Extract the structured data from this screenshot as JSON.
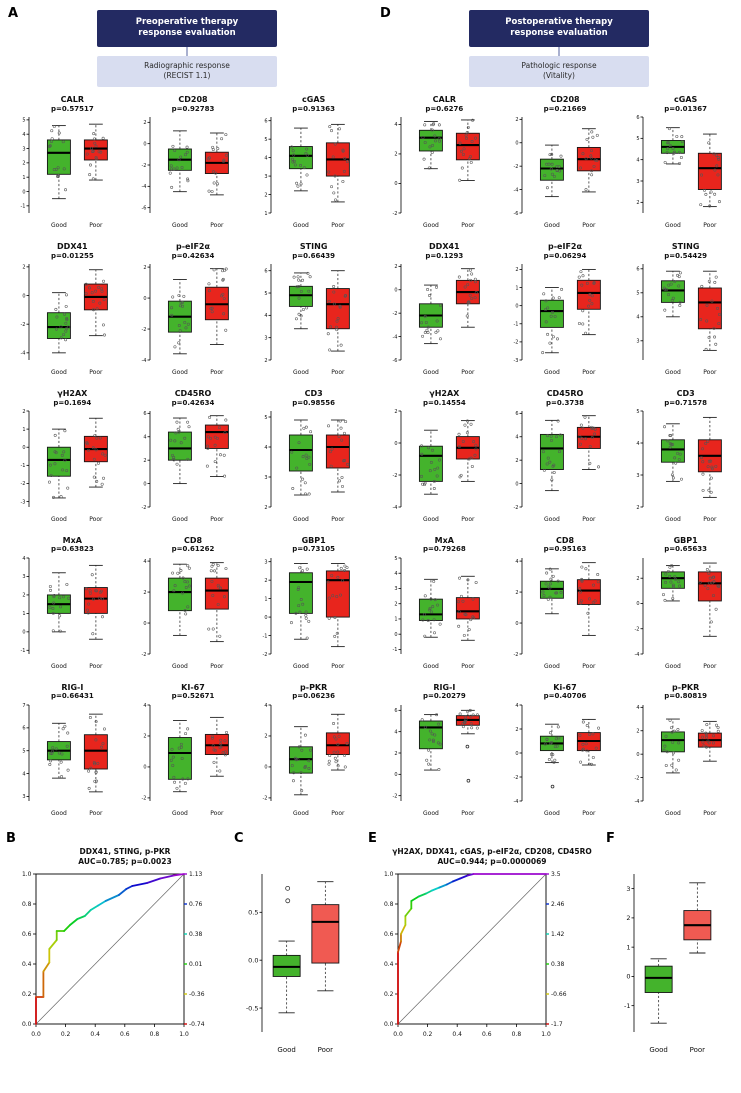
{
  "colors": {
    "good_fill": "#44b32c",
    "poor_fill": "#e8251d",
    "poor_fill_light": "#f05a52",
    "box_stroke": "#151515",
    "flow_dark_bg": "#232a62",
    "flow_dark_text": "#ffffff",
    "flow_light_bg": "#d8ddf0",
    "flow_light_text": "#2a2a2a",
    "point_stroke": "#555555",
    "diag_line": "#666666"
  },
  "group_labels": [
    "Good",
    "Poor"
  ],
  "box_stats_order": "[whisker_low, q1, median, q3, whisker_high]",
  "chart_data": {
    "A": {
      "type": "boxplot-grid",
      "label": "A",
      "flow_top": "Preoperative therapy\nresponse evaluation",
      "flow_bottom": "Radiographic response\n(RECIST 1.1)",
      "plots": [
        {
          "name": "CALR",
          "p": "p=0.57517",
          "ylim": [
            -1.5,
            5.2
          ],
          "yticks": [
            -1,
            0,
            1,
            2,
            3,
            4,
            5
          ],
          "good": [
            -0.5,
            1.2,
            2.7,
            3.6,
            4.6
          ],
          "poor": [
            0.8,
            2.2,
            3.0,
            3.6,
            4.7
          ]
        },
        {
          "name": "CD208",
          "p": "p=0.92783",
          "ylim": [
            -6.5,
            2.5
          ],
          "yticks": [
            -6,
            -4,
            -2,
            0,
            2
          ],
          "good": [
            -4.5,
            -2.5,
            -1.5,
            -0.5,
            1.2
          ],
          "poor": [
            -4.8,
            -2.8,
            -1.8,
            -0.8,
            1.0
          ]
        },
        {
          "name": "cGAS",
          "p": "p=0.91363",
          "ylim": [
            1,
            6.2
          ],
          "yticks": [
            1,
            2,
            3,
            4,
            5,
            6
          ],
          "good": [
            2.2,
            3.4,
            4.1,
            4.6,
            5.6
          ],
          "poor": [
            1.6,
            3.0,
            3.9,
            4.8,
            5.8
          ]
        },
        {
          "name": "DDX41",
          "p": "p=0.01255",
          "ylim": [
            -4.5,
            2.2
          ],
          "yticks": [
            -4,
            -2,
            0,
            2
          ],
          "good": [
            -4.0,
            -3.0,
            -2.2,
            -1.2,
            0.2
          ],
          "poor": [
            -2.8,
            -1.0,
            -0.1,
            0.8,
            1.8
          ]
        },
        {
          "name": "p-eIF2α",
          "p": "p=0.42634",
          "ylim": [
            -4,
            2.2
          ],
          "yticks": [
            -4,
            -2,
            0,
            2
          ],
          "good": [
            -3.6,
            -2.2,
            -1.2,
            -0.2,
            1.2
          ],
          "poor": [
            -3.0,
            -1.4,
            -0.4,
            0.7,
            1.9
          ]
        },
        {
          "name": "STING",
          "p": "p=0.66439",
          "ylim": [
            2,
            6.3
          ],
          "yticks": [
            2,
            3,
            4,
            5,
            6
          ],
          "good": [
            3.4,
            4.4,
            4.9,
            5.3,
            5.9
          ],
          "poor": [
            2.4,
            3.4,
            4.5,
            5.2,
            6.0
          ]
        },
        {
          "name": "γH2AX",
          "p": "p=0.1694",
          "ylim": [
            -3.3,
            2
          ],
          "yticks": [
            -3,
            -2,
            -1,
            0,
            1,
            2
          ],
          "good": [
            -2.8,
            -1.6,
            -0.7,
            0.0,
            1.0
          ],
          "poor": [
            -2.2,
            -0.8,
            -0.1,
            0.6,
            1.6
          ]
        },
        {
          "name": "CD45RO",
          "p": "p=0.42634",
          "ylim": [
            -2,
            6.2
          ],
          "yticks": [
            -2,
            0,
            2,
            4,
            6
          ],
          "good": [
            0.0,
            2.0,
            3.0,
            4.4,
            5.6
          ],
          "poor": [
            0.6,
            3.0,
            4.4,
            5.0,
            5.8
          ]
        },
        {
          "name": "CD3",
          "p": "p=0.98556",
          "ylim": [
            2,
            5.2
          ],
          "yticks": [
            2,
            3,
            4,
            5
          ],
          "good": [
            2.4,
            3.2,
            3.9,
            4.4,
            4.9
          ],
          "poor": [
            2.5,
            3.3,
            4.0,
            4.4,
            4.9
          ]
        },
        {
          "name": "MxA",
          "p": "p=0.63823",
          "ylim": [
            -1.2,
            4
          ],
          "yticks": [
            -1,
            0,
            1,
            2,
            3,
            4
          ],
          "good": [
            0.0,
            1.0,
            1.5,
            2.0,
            3.2
          ],
          "poor": [
            -0.4,
            1.0,
            1.8,
            2.4,
            3.6
          ]
        },
        {
          "name": "CD8",
          "p": "p=0.61262",
          "ylim": [
            -2,
            4.2
          ],
          "yticks": [
            -2,
            0,
            2,
            4
          ],
          "good": [
            -0.8,
            0.8,
            2.0,
            2.9,
            3.8
          ],
          "poor": [
            -1.2,
            0.9,
            2.1,
            2.9,
            3.9
          ]
        },
        {
          "name": "GBP1",
          "p": "p=0.73105",
          "ylim": [
            -2,
            3.2
          ],
          "yticks": [
            -2,
            -1,
            0,
            1,
            2,
            3
          ],
          "good": [
            -1.2,
            0.2,
            1.9,
            2.4,
            2.9
          ],
          "poor": [
            -1.6,
            0.0,
            2.0,
            2.5,
            2.9
          ]
        },
        {
          "name": "RIG-I",
          "p": "p=0.66431",
          "ylim": [
            2.8,
            7
          ],
          "yticks": [
            3,
            4,
            5,
            6,
            7
          ],
          "good": [
            3.8,
            4.6,
            5.0,
            5.4,
            6.2
          ],
          "poor": [
            3.2,
            4.2,
            5.0,
            5.7,
            6.6
          ]
        },
        {
          "name": "KI-67",
          "p": "p=0.52671",
          "ylim": [
            -2.2,
            4
          ],
          "yticks": [
            -2,
            0,
            2,
            4
          ],
          "good": [
            -1.6,
            -0.8,
            0.9,
            1.9,
            3.0
          ],
          "poor": [
            -0.6,
            0.8,
            1.4,
            2.1,
            3.2
          ]
        },
        {
          "name": "p-PKR",
          "p": "p=0.06236",
          "ylim": [
            -2.2,
            4
          ],
          "yticks": [
            -2,
            0,
            2,
            4
          ],
          "good": [
            -1.8,
            -0.4,
            0.5,
            1.3,
            2.6
          ],
          "poor": [
            -0.2,
            0.8,
            1.4,
            2.2,
            3.4
          ]
        }
      ]
    },
    "D": {
      "type": "boxplot-grid",
      "label": "D",
      "flow_top": "Postoperative therapy\nresponse evaluation",
      "flow_bottom": "Pathologic response\n(Vitality)",
      "plots": [
        {
          "name": "CALR",
          "p": "p=0.6276",
          "ylim": [
            -2,
            4.5
          ],
          "yticks": [
            -2,
            0,
            2,
            4
          ],
          "good": [
            1.0,
            2.2,
            3.1,
            3.6,
            4.2
          ],
          "poor": [
            0.2,
            1.6,
            2.6,
            3.4,
            4.3
          ]
        },
        {
          "name": "CD208",
          "p": "p=0.21669",
          "ylim": [
            -6,
            2.2
          ],
          "yticks": [
            -6,
            -4,
            -2,
            0,
            2
          ],
          "good": [
            -4.6,
            -3.2,
            -2.2,
            -1.4,
            -0.2
          ],
          "poor": [
            -4.2,
            -2.4,
            -1.4,
            -0.4,
            1.2
          ]
        },
        {
          "name": "cGAS",
          "p": "p=0.01367",
          "ylim": [
            1.5,
            6
          ],
          "yticks": [
            2,
            3,
            4,
            5,
            6
          ],
          "good": [
            3.8,
            4.3,
            4.6,
            4.9,
            5.5
          ],
          "poor": [
            1.8,
            2.6,
            3.6,
            4.3,
            5.2
          ]
        },
        {
          "name": "DDX41",
          "p": "p=0.1293",
          "ylim": [
            -6,
            2.2
          ],
          "yticks": [
            -6,
            -4,
            -2,
            0,
            2
          ],
          "good": [
            -4.6,
            -3.2,
            -2.2,
            -1.2,
            0.4
          ],
          "poor": [
            -3.2,
            -1.2,
            -0.2,
            0.8,
            1.8
          ]
        },
        {
          "name": "p-eIF2α",
          "p": "p=0.06294",
          "ylim": [
            -3,
            2.3
          ],
          "yticks": [
            -3,
            -2,
            -1,
            0,
            1,
            2
          ],
          "good": [
            -2.6,
            -1.2,
            -0.3,
            0.3,
            1.0
          ],
          "poor": [
            -1.6,
            -0.2,
            0.7,
            1.4,
            2.0
          ]
        },
        {
          "name": "STING",
          "p": "p=0.54429",
          "ylim": [
            2.2,
            6.2
          ],
          "yticks": [
            3,
            4,
            5,
            6
          ],
          "good": [
            4.0,
            4.6,
            5.1,
            5.5,
            5.9
          ],
          "poor": [
            2.6,
            3.5,
            4.6,
            5.2,
            5.9
          ]
        },
        {
          "name": "γH2AX",
          "p": "p=0.14554",
          "ylim": [
            -4,
            2
          ],
          "yticks": [
            -4,
            -2,
            0,
            2
          ],
          "good": [
            -3.2,
            -2.4,
            -0.8,
            -0.2,
            0.8
          ],
          "poor": [
            -2.4,
            -1.0,
            -0.3,
            0.4,
            1.4
          ]
        },
        {
          "name": "CD45RO",
          "p": "p=0.3738",
          "ylim": [
            -2,
            6.2
          ],
          "yticks": [
            -2,
            0,
            2,
            4,
            6
          ],
          "good": [
            -0.6,
            1.2,
            3.0,
            4.2,
            5.4
          ],
          "poor": [
            1.2,
            3.0,
            4.0,
            4.8,
            5.8
          ]
        },
        {
          "name": "CD3",
          "p": "p=0.71578",
          "ylim": [
            2,
            5
          ],
          "yticks": [
            2,
            3,
            4,
            5
          ],
          "good": [
            2.8,
            3.4,
            3.8,
            4.1,
            4.6
          ],
          "poor": [
            2.3,
            3.1,
            3.6,
            4.1,
            4.8
          ]
        },
        {
          "name": "MxA",
          "p": "p=0.79268",
          "ylim": [
            -1.3,
            5
          ],
          "yticks": [
            -1,
            0,
            1,
            2,
            3,
            4,
            5
          ],
          "good": [
            -0.2,
            0.9,
            1.3,
            2.3,
            3.6
          ],
          "poor": [
            -0.4,
            1.0,
            1.5,
            2.4,
            3.8
          ]
        },
        {
          "name": "CD8",
          "p": "p=0.95163",
          "ylim": [
            -2,
            4.2
          ],
          "yticks": [
            -2,
            0,
            2,
            4
          ],
          "good": [
            0.6,
            1.6,
            2.2,
            2.7,
            3.5
          ],
          "poor": [
            -0.8,
            1.2,
            2.1,
            2.8,
            3.9
          ]
        },
        {
          "name": "GBP1",
          "p": "p=0.65633",
          "ylim": [
            -4,
            3.6
          ],
          "yticks": [
            -4,
            -2,
            0,
            2
          ],
          "good": [
            0.2,
            1.2,
            2.0,
            2.5,
            3.0
          ],
          "poor": [
            -2.6,
            0.2,
            1.6,
            2.5,
            3.2
          ]
        },
        {
          "name": "RIG-I",
          "p": "p=0.20279",
          "ylim": [
            -2.5,
            6.5
          ],
          "yticks": [
            -2,
            0,
            2,
            4,
            6
          ],
          "good": [
            0.4,
            2.4,
            4.4,
            5.0,
            5.6
          ],
          "poor": [
            3.8,
            4.6,
            5.1,
            5.5,
            6.0
          ],
          "pout": [
            2.6,
            -0.6
          ]
        },
        {
          "name": "Ki-67",
          "p": "p=0.40706",
          "ylim": [
            -4,
            4
          ],
          "yticks": [
            -4,
            -2,
            0,
            2,
            4
          ],
          "good": [
            -0.8,
            0.2,
            0.8,
            1.4,
            2.4
          ],
          "gout": [
            -2.8
          ],
          "poor": [
            -1.0,
            0.2,
            1.0,
            1.7,
            2.8
          ]
        },
        {
          "name": "p-PKR",
          "p": "p=0.80819",
          "ylim": [
            -4,
            4.2
          ],
          "yticks": [
            -4,
            -2,
            0,
            2,
            4
          ],
          "good": [
            -1.6,
            0.2,
            1.2,
            1.9,
            3.0
          ],
          "poor": [
            -0.6,
            0.6,
            1.2,
            1.8,
            2.8
          ]
        }
      ]
    },
    "B": {
      "type": "roc",
      "label": "B",
      "title": "DDX41, STING, p-PKR",
      "subtitle": "AUC=0.785; p=0.0023",
      "xticks": [
        "0.0",
        "0.2",
        "0.4",
        "0.6",
        "0.8",
        "1.0"
      ],
      "yticks": [
        "0.0",
        "0.2",
        "0.4",
        "0.6",
        "0.8",
        "1.0"
      ],
      "right_ticks": [
        "1.13",
        "0.76",
        "0.38",
        "0.01",
        "-0.36",
        "-0.74"
      ],
      "curve": [
        [
          0,
          0
        ],
        [
          0,
          0.18
        ],
        [
          0.05,
          0.18
        ],
        [
          0.05,
          0.35
        ],
        [
          0.09,
          0.41
        ],
        [
          0.09,
          0.5
        ],
        [
          0.14,
          0.56
        ],
        [
          0.14,
          0.62
        ],
        [
          0.19,
          0.62
        ],
        [
          0.23,
          0.66
        ],
        [
          0.28,
          0.7
        ],
        [
          0.33,
          0.72
        ],
        [
          0.37,
          0.76
        ],
        [
          0.42,
          0.79
        ],
        [
          0.47,
          0.82
        ],
        [
          0.56,
          0.86
        ],
        [
          0.61,
          0.9
        ],
        [
          0.65,
          0.92
        ],
        [
          0.75,
          0.94
        ],
        [
          0.84,
          0.97
        ],
        [
          0.93,
          0.99
        ],
        [
          1,
          1
        ]
      ]
    },
    "C": {
      "type": "boxpair",
      "label": "C",
      "ylim": [
        -0.75,
        0.9
      ],
      "yticks": [
        "-0.5",
        "0.0",
        "0.5"
      ],
      "good": [
        -0.55,
        -0.17,
        -0.07,
        0.05,
        0.2
      ],
      "gout": [
        0.62,
        0.75
      ],
      "poor": [
        -0.32,
        -0.03,
        0.4,
        0.58,
        0.82
      ]
    },
    "E": {
      "type": "roc",
      "label": "E",
      "title": "γH2AX, DDX41, cGAS, p-eIF2α, CD208, CD45RO",
      "subtitle": "AUC=0.944; p=0.0000069",
      "xticks": [
        "0.0",
        "0.2",
        "0.4",
        "0.6",
        "0.8",
        "1.0"
      ],
      "yticks": [
        "0.0",
        "0.2",
        "0.4",
        "0.6",
        "0.8",
        "1.0"
      ],
      "right_ticks": [
        "3.5",
        "2.46",
        "1.42",
        "0.38",
        "-0.66",
        "-1.7"
      ],
      "curve": [
        [
          0,
          0
        ],
        [
          0,
          0.48
        ],
        [
          0.02,
          0.55
        ],
        [
          0.02,
          0.6
        ],
        [
          0.05,
          0.66
        ],
        [
          0.05,
          0.72
        ],
        [
          0.09,
          0.77
        ],
        [
          0.09,
          0.82
        ],
        [
          0.14,
          0.85
        ],
        [
          0.19,
          0.87
        ],
        [
          0.23,
          0.89
        ],
        [
          0.28,
          0.91
        ],
        [
          0.33,
          0.93
        ],
        [
          0.37,
          0.95
        ],
        [
          0.42,
          0.97
        ],
        [
          0.47,
          0.99
        ],
        [
          0.51,
          1
        ],
        [
          1,
          1
        ]
      ]
    },
    "F": {
      "type": "boxpair",
      "label": "F",
      "ylim": [
        -1.9,
        3.5
      ],
      "yticks": [
        "-1",
        "0",
        "1",
        "2",
        "3"
      ],
      "good": [
        -1.6,
        -0.55,
        -0.05,
        0.35,
        0.6
      ],
      "poor": [
        0.8,
        1.25,
        1.75,
        2.25,
        3.2
      ]
    }
  }
}
